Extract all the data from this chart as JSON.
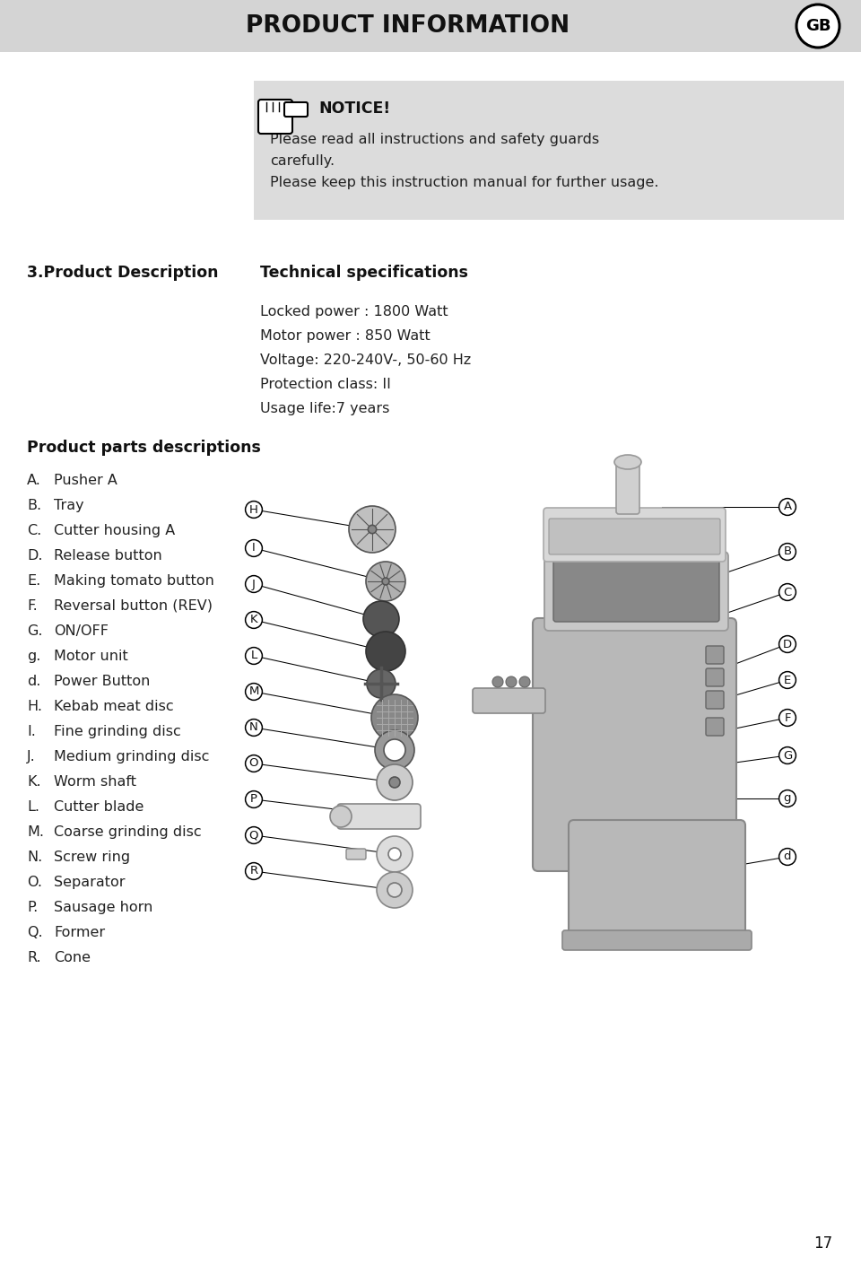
{
  "bg_color": "#ffffff",
  "header_bg": "#d4d4d4",
  "header_text": "PRODUCT INFORMATION",
  "header_badge": "GB",
  "notice_bg": "#dcdcdc",
  "notice_title": "NOTICE!",
  "notice_line1": "Please read all instructions and safety guards",
  "notice_line2": "carefully.",
  "notice_line3": "Please keep this instruction manual for further usage.",
  "section_title": "3.Product Description",
  "tech_title": "Technical specifications",
  "tech_specs": [
    "Locked power : 1800 Watt",
    "Motor power : 850 Watt",
    "Voltage: 220-240V-, 50-60 Hz",
    "Protection class: II",
    "Usage life:7 years"
  ],
  "parts_title": "Product parts descriptions",
  "parts_list": [
    [
      "A.",
      "Pusher A"
    ],
    [
      "B.",
      "Tray"
    ],
    [
      "C.",
      "Cutter housing A"
    ],
    [
      "D.",
      "Release button"
    ],
    [
      "E.",
      "Making tomato button"
    ],
    [
      "F.",
      "Reversal button (REV)"
    ],
    [
      "G.",
      "ON/OFF"
    ],
    [
      "g.",
      "Motor unit"
    ],
    [
      "d.",
      "Power Button"
    ],
    [
      "H.",
      "Kebab meat disc"
    ],
    [
      "I.",
      "Fine grinding disc"
    ],
    [
      "J.",
      "Medium grinding disc"
    ],
    [
      "K.",
      "Worm shaft"
    ],
    [
      "L.",
      "Cutter blade"
    ],
    [
      "M.",
      "Coarse grinding disc"
    ],
    [
      "N.",
      "Screw ring"
    ],
    [
      "O.",
      "Separator"
    ],
    [
      "P.",
      "Sausage horn"
    ],
    [
      "Q.",
      "Former"
    ],
    [
      "R.",
      "Cone"
    ]
  ],
  "page_number": "17",
  "fig_width": 9.6,
  "fig_height": 14.1
}
